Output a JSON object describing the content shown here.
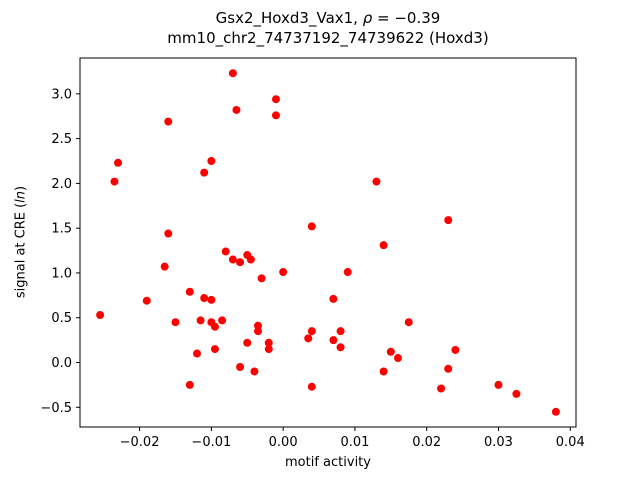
{
  "figure": {
    "title": {
      "part1": "Gsx2_Hoxd3_Vax1, ",
      "rho": "ρ",
      "part2": " = −0.39",
      "line2": "mm10_chr2_74737192_74739622 (Hoxd3)"
    }
  },
  "chart_data": {
    "type": "scatter",
    "title": "Gsx2_Hoxd3_Vax1, ρ = −0.39",
    "subtitle": "mm10_chr2_74737192_74739622 (Hoxd3)",
    "xlabel": "motif activity",
    "ylabel": "signal at CRE (ln)",
    "ylabel_parts": [
      "signal at CRE (",
      "ln",
      ")"
    ],
    "legend": "none",
    "grid": false,
    "point_color": "#ff0000",
    "marker_radius": 4,
    "xlim": [
      -0.0283,
      0.0408
    ],
    "ylim": [
      -0.72,
      3.4
    ],
    "x_ticks": [
      {
        "v": -0.02,
        "label": "−0.02"
      },
      {
        "v": -0.01,
        "label": "−0.01"
      },
      {
        "v": 0.0,
        "label": "0.00"
      },
      {
        "v": 0.01,
        "label": "0.01"
      },
      {
        "v": 0.02,
        "label": "0.02"
      },
      {
        "v": 0.03,
        "label": "0.03"
      },
      {
        "v": 0.04,
        "label": "0.04"
      }
    ],
    "y_ticks": [
      {
        "v": -0.5,
        "label": "−0.5"
      },
      {
        "v": 0.0,
        "label": "0.0"
      },
      {
        "v": 0.5,
        "label": "0.5"
      },
      {
        "v": 1.0,
        "label": "1.0"
      },
      {
        "v": 1.5,
        "label": "1.5"
      },
      {
        "v": 2.0,
        "label": "2.0"
      },
      {
        "v": 2.5,
        "label": "2.5"
      },
      {
        "v": 3.0,
        "label": "3.0"
      }
    ],
    "points": [
      [
        -0.0255,
        0.53
      ],
      [
        -0.023,
        2.23
      ],
      [
        -0.0235,
        2.02
      ],
      [
        -0.019,
        0.69
      ],
      [
        -0.016,
        2.69
      ],
      [
        -0.016,
        1.44
      ],
      [
        -0.0165,
        1.07
      ],
      [
        -0.015,
        0.45
      ],
      [
        -0.013,
        0.79
      ],
      [
        -0.013,
        -0.25
      ],
      [
        -0.011,
        2.12
      ],
      [
        -0.01,
        2.25
      ],
      [
        -0.011,
        0.72
      ],
      [
        -0.0115,
        0.47
      ],
      [
        -0.012,
        0.1
      ],
      [
        -0.01,
        0.7
      ],
      [
        -0.01,
        0.45
      ],
      [
        -0.0095,
        0.4
      ],
      [
        -0.0095,
        0.15
      ],
      [
        -0.008,
        1.24
      ],
      [
        -0.0085,
        0.47
      ],
      [
        -0.007,
        3.23
      ],
      [
        -0.0065,
        2.82
      ],
      [
        -0.007,
        1.15
      ],
      [
        -0.006,
        1.12
      ],
      [
        -0.006,
        -0.05
      ],
      [
        -0.005,
        1.2
      ],
      [
        -0.0045,
        1.15
      ],
      [
        -0.005,
        0.22
      ],
      [
        -0.004,
        -0.1
      ],
      [
        -0.0035,
        0.35
      ],
      [
        -0.0035,
        0.41
      ],
      [
        -0.003,
        0.94
      ],
      [
        -0.002,
        0.15
      ],
      [
        -0.002,
        0.22
      ],
      [
        -0.001,
        2.94
      ],
      [
        -0.001,
        2.76
      ],
      [
        0.0,
        1.01
      ],
      [
        0.004,
        1.52
      ],
      [
        0.004,
        0.35
      ],
      [
        0.0035,
        0.27
      ],
      [
        0.004,
        -0.27
      ],
      [
        0.007,
        0.71
      ],
      [
        0.007,
        0.25
      ],
      [
        0.008,
        0.35
      ],
      [
        0.008,
        0.17
      ],
      [
        0.009,
        1.01
      ],
      [
        0.013,
        2.02
      ],
      [
        0.014,
        1.31
      ],
      [
        0.014,
        -0.1
      ],
      [
        0.015,
        0.12
      ],
      [
        0.016,
        0.05
      ],
      [
        0.0175,
        0.45
      ],
      [
        0.022,
        -0.29
      ],
      [
        0.023,
        1.59
      ],
      [
        0.023,
        -0.07
      ],
      [
        0.024,
        0.14
      ],
      [
        0.03,
        -0.25
      ],
      [
        0.0325,
        -0.35
      ],
      [
        0.038,
        -0.55
      ]
    ]
  }
}
